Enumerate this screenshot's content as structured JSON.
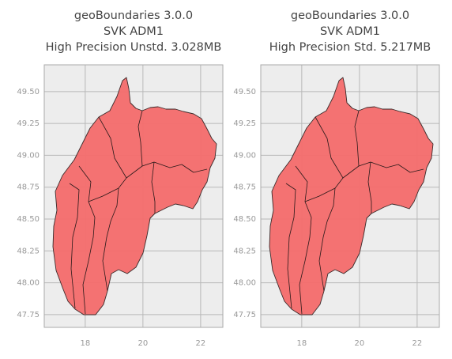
{
  "chart_data": [
    {
      "type": "map",
      "title_lines": [
        "geoBoundaries 3.0.0",
        "SVK ADM1",
        "High Precision Unstd. 3.028MB"
      ],
      "xlim": [
        16.58,
        22.77
      ],
      "ylim": [
        47.65,
        49.71
      ],
      "xticks": [
        18,
        20,
        22
      ],
      "yticks": [
        47.75,
        {
          "value": 48,
          "label": "48.00"
        },
        48.25,
        {
          "value": 48.5,
          "label": "48.50"
        },
        48.75,
        {
          "value": 49,
          "label": "49.00"
        },
        49.25,
        {
          "value": 49.5,
          "label": "49.50"
        }
      ],
      "grid": true
    },
    {
      "type": "map",
      "title_lines": [
        "geoBoundaries 3.0.0",
        "SVK ADM1",
        "High Precision Std. 5.217MB"
      ],
      "xlim": [
        16.58,
        22.77
      ],
      "ylim": [
        47.65,
        49.71
      ],
      "xticks": [
        18,
        20,
        22
      ],
      "yticks": [
        47.75,
        {
          "value": 48,
          "label": "48.00"
        },
        48.25,
        {
          "value": 48.5,
          "label": "48.50"
        },
        48.75,
        {
          "value": 49,
          "label": "49.00"
        },
        49.25,
        {
          "value": 49.5,
          "label": "49.50"
        }
      ],
      "grid": true
    }
  ]
}
